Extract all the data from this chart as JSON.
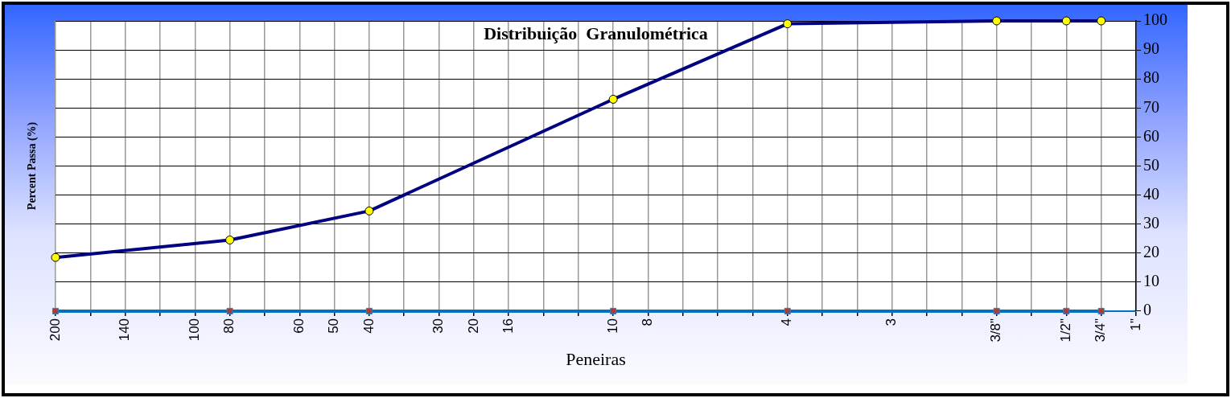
{
  "chart_data": {
    "type": "line",
    "title": "Distribuição  Granulométrica",
    "xlabel": "Peneiras",
    "ylabel": "Percent Passa (%)",
    "categories": [
      "200",
      null,
      "140",
      null,
      "100",
      "80",
      null,
      "60",
      "50",
      "40",
      null,
      "30",
      "20",
      "16",
      null,
      null,
      "10",
      "8",
      null,
      null,
      null,
      "4",
      null,
      null,
      "3",
      null,
      null,
      "3/8\"",
      null,
      "1/2\"",
      "3/4\"",
      "1\""
    ],
    "series": [
      {
        "color": "#000080",
        "marker": "circle",
        "values": [
          18.5,
          null,
          null,
          null,
          null,
          24.5,
          null,
          null,
          null,
          34.5,
          null,
          null,
          null,
          null,
          null,
          null,
          73,
          null,
          null,
          null,
          null,
          99,
          null,
          null,
          null,
          null,
          null,
          100,
          null,
          100,
          100,
          null
        ]
      },
      {
        "color": "#0070c0",
        "marker": "square",
        "values": [
          0,
          null,
          null,
          null,
          null,
          0,
          null,
          null,
          null,
          0,
          null,
          null,
          null,
          null,
          null,
          null,
          0,
          null,
          null,
          null,
          null,
          0,
          null,
          null,
          null,
          null,
          null,
          0,
          null,
          0,
          0,
          null
        ]
      }
    ],
    "ylim": [
      0,
      100
    ],
    "yticks": [
      0,
      10,
      20,
      30,
      40,
      50,
      60,
      70,
      80,
      90,
      100
    ],
    "grid": true,
    "line_style": "solid"
  }
}
